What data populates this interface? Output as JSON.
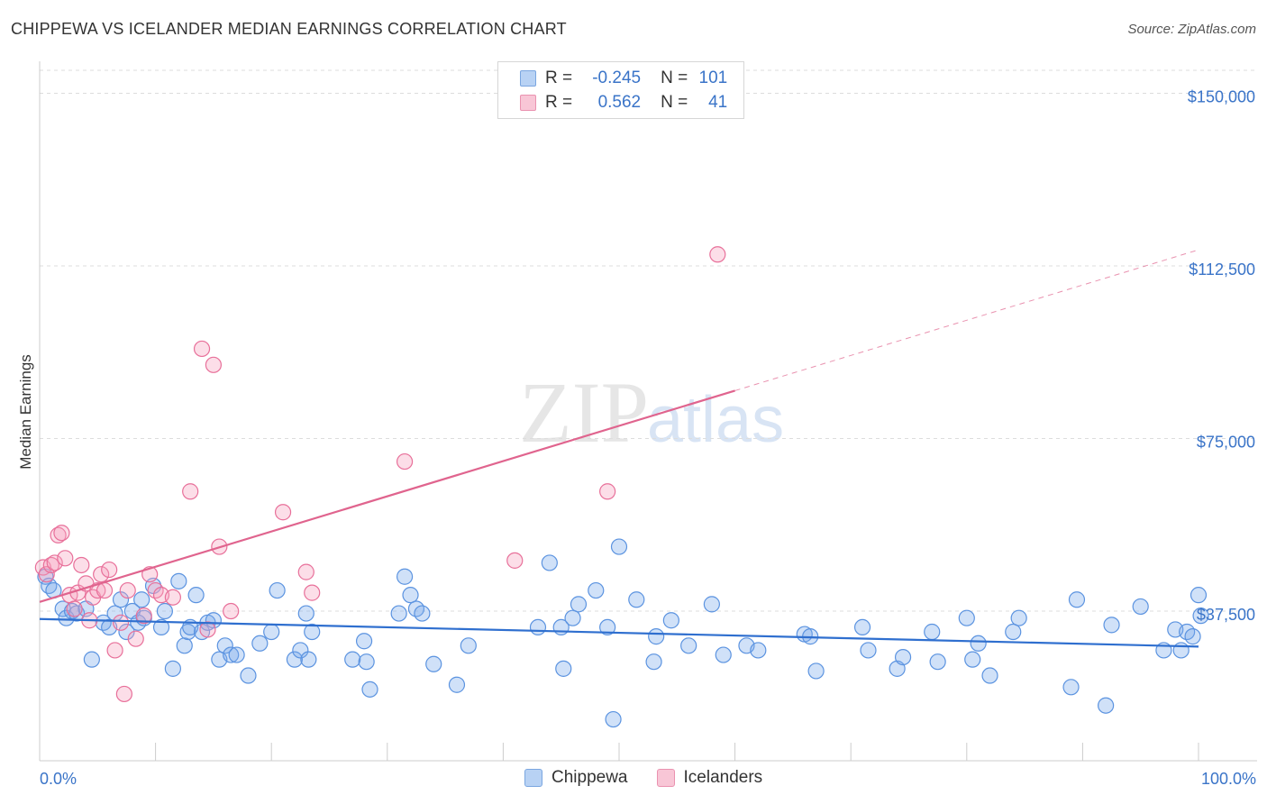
{
  "title": "CHIPPEWA VS ICELANDER MEDIAN EARNINGS CORRELATION CHART",
  "source": "Source: ZipAtlas.com",
  "watermark": {
    "zip": "ZIP",
    "atlas": "atlas"
  },
  "legend": {
    "chippewa": {
      "r_label": "R =",
      "r_value": "-0.245",
      "n_label": "N =",
      "n_value": "101"
    },
    "icelanders": {
      "r_label": "R =",
      "r_value": "0.562",
      "n_label": "N =",
      "n_value": "41"
    }
  },
  "chart_data": {
    "type": "scatter",
    "title": "CHIPPEWA VS ICELANDER MEDIAN EARNINGS CORRELATION CHART",
    "xlabel": "",
    "ylabel": "Median Earnings",
    "xlim": [
      0,
      100
    ],
    "ylim": [
      5000,
      155000
    ],
    "x_tick_labels": [
      "0.0%",
      "100.0%"
    ],
    "y_ticks": [
      37500,
      75000,
      112500,
      150000
    ],
    "y_tick_labels": [
      "$37,500",
      "$75,000",
      "$112,500",
      "$150,000"
    ],
    "grid": true,
    "series": [
      {
        "name": "Chippewa",
        "color": "#5b93e0",
        "fill": "rgba(120,170,235,0.35)",
        "trend": {
          "x0": 0,
          "y0": 35800,
          "x1": 100,
          "y1": 29800,
          "solid_until": 100
        },
        "points": [
          [
            0.5,
            45000
          ],
          [
            0.8,
            43000
          ],
          [
            1.2,
            42000
          ],
          [
            2,
            38000
          ],
          [
            2.3,
            36000
          ],
          [
            2.8,
            37500
          ],
          [
            3.2,
            37000
          ],
          [
            4,
            38000
          ],
          [
            4.5,
            27000
          ],
          [
            5.5,
            35000
          ],
          [
            6,
            34000
          ],
          [
            6.5,
            37000
          ],
          [
            7,
            40000
          ],
          [
            7.5,
            33000
          ],
          [
            8,
            37500
          ],
          [
            8.5,
            35000
          ],
          [
            8.8,
            40000
          ],
          [
            9,
            36000
          ],
          [
            9.8,
            43000
          ],
          [
            10.5,
            34000
          ],
          [
            10.8,
            37500
          ],
          [
            11.5,
            25000
          ],
          [
            12,
            44000
          ],
          [
            12.5,
            30000
          ],
          [
            12.8,
            33000
          ],
          [
            13,
            34000
          ],
          [
            13.5,
            41000
          ],
          [
            14,
            33000
          ],
          [
            14.5,
            35000
          ],
          [
            15,
            35500
          ],
          [
            15.5,
            27000
          ],
          [
            16,
            30000
          ],
          [
            16.5,
            28000
          ],
          [
            17,
            28000
          ],
          [
            18,
            23500
          ],
          [
            19,
            30500
          ],
          [
            20,
            33000
          ],
          [
            20.5,
            42000
          ],
          [
            22,
            27000
          ],
          [
            22.5,
            29000
          ],
          [
            23,
            37000
          ],
          [
            23.2,
            27000
          ],
          [
            23.5,
            33000
          ],
          [
            27,
            27000
          ],
          [
            28,
            31000
          ],
          [
            28.2,
            26500
          ],
          [
            28.5,
            20500
          ],
          [
            31,
            37000
          ],
          [
            31.5,
            45000
          ],
          [
            32,
            41000
          ],
          [
            32.5,
            38000
          ],
          [
            33,
            37000
          ],
          [
            34,
            26000
          ],
          [
            36,
            21500
          ],
          [
            37,
            30000
          ],
          [
            43,
            34000
          ],
          [
            44,
            48000
          ],
          [
            45,
            34000
          ],
          [
            45.2,
            25000
          ],
          [
            46,
            36000
          ],
          [
            46.5,
            39000
          ],
          [
            48,
            42000
          ],
          [
            49,
            34000
          ],
          [
            49.5,
            14000
          ],
          [
            50,
            51500
          ],
          [
            51.5,
            40000
          ],
          [
            53,
            26500
          ],
          [
            53.2,
            32000
          ],
          [
            54.5,
            35500
          ],
          [
            56,
            30000
          ],
          [
            58,
            39000
          ],
          [
            59,
            28000
          ],
          [
            61,
            30000
          ],
          [
            62,
            29000
          ],
          [
            66,
            32500
          ],
          [
            66.5,
            32000
          ],
          [
            67,
            24500
          ],
          [
            71,
            34000
          ],
          [
            71.5,
            29000
          ],
          [
            74,
            25000
          ],
          [
            74.5,
            27500
          ],
          [
            77,
            33000
          ],
          [
            77.5,
            26500
          ],
          [
            80,
            36000
          ],
          [
            80.5,
            27000
          ],
          [
            81,
            30500
          ],
          [
            82,
            23500
          ],
          [
            84,
            33000
          ],
          [
            84.5,
            36000
          ],
          [
            89,
            21000
          ],
          [
            89.5,
            40000
          ],
          [
            92,
            17000
          ],
          [
            92.5,
            34500
          ],
          [
            95,
            38500
          ],
          [
            97,
            29000
          ],
          [
            98,
            33500
          ],
          [
            98.5,
            29000
          ],
          [
            99,
            33000
          ],
          [
            99.5,
            32000
          ],
          [
            100,
            41000
          ],
          [
            100.2,
            36500
          ]
        ]
      },
      {
        "name": "Icelanders",
        "color": "#e8709a",
        "fill": "rgba(245,160,190,0.35)",
        "trend": {
          "x0": 0,
          "y0": 39500,
          "x1": 100,
          "y1": 116000,
          "solid_until": 60
        },
        "points": [
          [
            0.3,
            47000
          ],
          [
            0.6,
            45500
          ],
          [
            1,
            47500
          ],
          [
            1.3,
            48000
          ],
          [
            1.6,
            54000
          ],
          [
            1.9,
            54500
          ],
          [
            2.2,
            49000
          ],
          [
            2.6,
            41000
          ],
          [
            3,
            38000
          ],
          [
            3.3,
            41500
          ],
          [
            3.6,
            47500
          ],
          [
            4,
            43500
          ],
          [
            4.3,
            35500
          ],
          [
            4.6,
            40500
          ],
          [
            5,
            42000
          ],
          [
            5.3,
            45500
          ],
          [
            5.6,
            42000
          ],
          [
            6,
            46500
          ],
          [
            6.5,
            29000
          ],
          [
            7,
            35000
          ],
          [
            7.3,
            19500
          ],
          [
            7.6,
            42000
          ],
          [
            8.3,
            31500
          ],
          [
            9,
            36500
          ],
          [
            9.5,
            45500
          ],
          [
            10,
            42000
          ],
          [
            10.5,
            41000
          ],
          [
            11.5,
            40500
          ],
          [
            14,
            94500
          ],
          [
            14.5,
            33500
          ],
          [
            15,
            91000
          ],
          [
            15.5,
            51500
          ],
          [
            16.5,
            37500
          ],
          [
            13,
            63500
          ],
          [
            21,
            59000
          ],
          [
            23,
            46000
          ],
          [
            23.5,
            41500
          ],
          [
            31.5,
            70000
          ],
          [
            41,
            48500
          ],
          [
            49,
            63500
          ],
          [
            58.5,
            115000
          ]
        ]
      }
    ]
  }
}
